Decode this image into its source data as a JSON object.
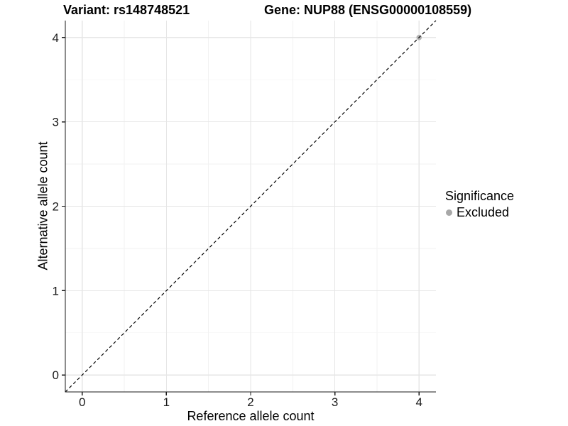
{
  "chart_data": {
    "type": "scatter",
    "titles": {
      "left": "Variant: rs148748521",
      "right": "Gene: NUP88 (ENSG00000108559)"
    },
    "xlabel": "Reference allele count",
    "ylabel": "Alternative allele count",
    "xlim": [
      -0.2,
      4.2
    ],
    "ylim": [
      -0.2,
      4.2
    ],
    "x_ticks": [
      0,
      1,
      2,
      3,
      4
    ],
    "y_ticks": [
      0,
      1,
      2,
      3,
      4
    ],
    "grid": {
      "major": true,
      "minor": true,
      "major_color": "#e6e6e6",
      "minor_color": "#f2f2f2"
    },
    "background": "#ffffff",
    "axis_color": "#1a1a1a",
    "tick_label_color": "#1a1a1a",
    "identity_line": {
      "style": "dashed",
      "color": "#000000",
      "x": [
        -0.2,
        4.2
      ],
      "y": [
        -0.2,
        4.2
      ]
    },
    "series": [
      {
        "name": "Excluded",
        "color": "#b3b3b3",
        "points": [
          [
            4,
            4
          ]
        ]
      }
    ],
    "legend": {
      "title": "Significance",
      "position": "right",
      "items": [
        {
          "label": "Excluded",
          "color": "#a8a8a8",
          "marker": "circle-icon"
        }
      ]
    }
  }
}
